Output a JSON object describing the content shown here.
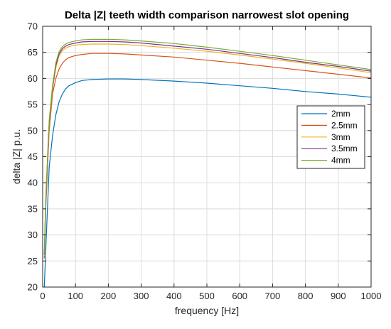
{
  "chart_data": {
    "type": "line",
    "title": "Delta |Z| teeth width comparison narrowest slot opening",
    "xlabel": "frequency [Hz]",
    "ylabel": "delta |Z| p.u.",
    "xlim": [
      0,
      1000
    ],
    "ylim": [
      20,
      70
    ],
    "xticks": [
      0,
      100,
      200,
      300,
      400,
      500,
      600,
      700,
      800,
      900,
      1000
    ],
    "yticks": [
      20,
      25,
      30,
      35,
      40,
      45,
      50,
      55,
      60,
      65,
      70
    ],
    "grid": true,
    "legend_position": "right",
    "x": [
      5,
      10,
      20,
      30,
      40,
      50,
      60,
      70,
      80,
      100,
      120,
      150,
      200,
      250,
      300,
      400,
      500,
      600,
      700,
      800,
      900,
      1000
    ],
    "series": [
      {
        "name": "2mm",
        "color": "#0072BD",
        "values": [
          20.0,
          28.0,
          43.0,
          49.0,
          53.0,
          55.5,
          57.0,
          58.0,
          58.6,
          59.2,
          59.6,
          59.8,
          59.9,
          59.9,
          59.8,
          59.5,
          59.1,
          58.6,
          58.1,
          57.5,
          57.0,
          56.4
        ]
      },
      {
        "name": "2.5mm",
        "color": "#D95319",
        "values": [
          25.5,
          36.0,
          50.0,
          57.0,
          60.0,
          61.8,
          62.9,
          63.6,
          64.0,
          64.4,
          64.6,
          64.8,
          64.8,
          64.7,
          64.5,
          64.1,
          63.5,
          62.9,
          62.2,
          61.5,
          60.8,
          60.1
        ]
      },
      {
        "name": "3mm",
        "color": "#EDB120",
        "values": [
          26.0,
          37.0,
          51.0,
          58.0,
          62.0,
          64.3,
          65.3,
          65.8,
          66.1,
          66.4,
          66.5,
          66.6,
          66.6,
          66.5,
          66.3,
          65.8,
          65.2,
          64.5,
          63.7,
          62.9,
          62.0,
          61.1
        ]
      },
      {
        "name": "3.5mm",
        "color": "#7E2F8E",
        "values": [
          26.3,
          37.5,
          51.5,
          58.3,
          62.5,
          64.7,
          65.7,
          66.2,
          66.5,
          66.8,
          67.0,
          67.1,
          67.1,
          67.0,
          66.8,
          66.2,
          65.6,
          64.8,
          64.0,
          63.1,
          62.3,
          61.4
        ]
      },
      {
        "name": "4mm",
        "color": "#77AC30",
        "values": [
          26.5,
          38.0,
          52.0,
          58.6,
          63.0,
          65.1,
          66.1,
          66.6,
          66.9,
          67.2,
          67.4,
          67.5,
          67.5,
          67.4,
          67.2,
          66.7,
          66.0,
          65.2,
          64.4,
          63.5,
          62.6,
          61.7
        ]
      }
    ]
  }
}
